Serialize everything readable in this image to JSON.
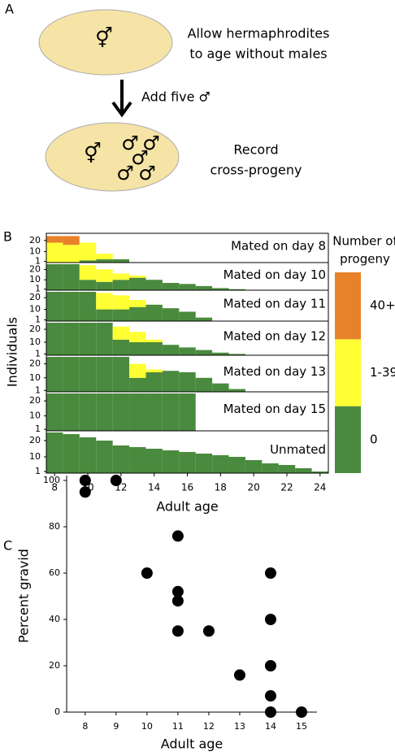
{
  "diagram": {
    "panel_labels": [
      "A",
      "B",
      "C"
    ],
    "step1": {
      "symbol": "⚥",
      "lines": [
        "Allow hermaphrodites",
        "to age without males"
      ]
    },
    "arrow_label": "Add five ♂",
    "step2": {
      "symbol": "⚥",
      "males": [
        "♂",
        "♂",
        "♂",
        "♂",
        "♂"
      ],
      "lines": [
        "Record",
        "cross-progeny"
      ]
    }
  },
  "chart_data": [
    {
      "type": "bar",
      "stacked": true,
      "x_label": "Adult age",
      "y_label": "Individuals",
      "x": [
        8,
        9,
        10,
        11,
        12,
        13,
        14,
        15,
        16,
        17,
        18,
        19,
        20,
        21,
        22,
        23,
        24
      ],
      "xlim": [
        7.5,
        24.5
      ],
      "xticks": [
        8,
        10,
        12,
        14,
        16,
        18,
        20,
        22,
        24
      ],
      "ylim": [
        0,
        25
      ],
      "yticks": [
        1,
        10,
        20
      ],
      "legend_title": [
        "Number of",
        "progeny"
      ],
      "series": [
        {
          "name": "0",
          "color": "#4a8a3e"
        },
        {
          "name": "1-39",
          "color": "#ffff33"
        },
        {
          "name": "40+",
          "color": "#e8822a"
        }
      ],
      "panels": [
        {
          "label": "Mated on day 8",
          "values": [
            [
              0,
              0,
              2,
              3,
              3,
              0,
              0,
              0,
              0,
              0,
              0,
              0,
              0,
              0,
              0,
              0,
              0
            ],
            [
              18,
              16,
              16,
              5,
              0,
              0,
              0,
              0,
              0,
              0,
              0,
              0,
              0,
              0,
              0,
              0,
              0
            ],
            [
              6,
              8,
              0,
              0,
              0,
              0,
              0,
              0,
              0,
              0,
              0,
              0,
              0,
              0,
              0,
              0,
              0
            ]
          ]
        },
        {
          "label": "Mated on day 10",
          "values": [
            [
              25,
              25,
              10,
              8,
              10,
              12,
              10,
              7,
              6,
              4,
              2,
              1,
              0,
              0,
              0,
              0,
              0
            ],
            [
              0,
              0,
              14,
              12,
              6,
              2,
              0,
              0,
              0,
              0,
              0,
              0,
              0,
              0,
              0,
              0,
              0
            ],
            [
              0,
              0,
              0,
              0,
              0,
              0,
              0,
              0,
              0,
              0,
              0,
              0,
              0,
              0,
              0,
              0,
              0
            ]
          ]
        },
        {
          "label": "Mated on day 11",
          "values": [
            [
              25,
              25,
              25,
              10,
              10,
              12,
              14,
              11,
              8,
              3,
              0,
              0,
              0,
              0,
              0,
              0,
              0
            ],
            [
              0,
              0,
              0,
              14,
              12,
              6,
              0,
              0,
              0,
              0,
              0,
              0,
              0,
              0,
              0,
              0,
              0
            ],
            [
              0,
              0,
              0,
              0,
              0,
              0,
              0,
              0,
              0,
              0,
              0,
              0,
              0,
              0,
              0,
              0,
              0
            ]
          ]
        },
        {
          "label": "Mated on day 12",
          "values": [
            [
              25,
              25,
              25,
              25,
              12,
              10,
              10,
              8,
              6,
              4,
              2,
              1,
              0,
              0,
              0,
              0,
              0
            ],
            [
              0,
              0,
              0,
              0,
              10,
              8,
              2,
              0,
              0,
              0,
              0,
              0,
              0,
              0,
              0,
              0,
              0
            ],
            [
              0,
              0,
              0,
              0,
              0,
              0,
              0,
              0,
              0,
              0,
              0,
              0,
              0,
              0,
              0,
              0,
              0
            ]
          ]
        },
        {
          "label": "Mated on day 13",
          "values": [
            [
              25,
              25,
              25,
              25,
              25,
              10,
              14,
              15,
              14,
              10,
              6,
              2,
              0,
              0,
              0,
              0,
              0
            ],
            [
              0,
              0,
              0,
              0,
              0,
              10,
              2,
              0,
              0,
              0,
              0,
              0,
              0,
              0,
              0,
              0,
              0
            ],
            [
              0,
              0,
              0,
              0,
              0,
              0,
              0,
              0,
              0,
              0,
              0,
              0,
              0,
              0,
              0,
              0,
              0
            ]
          ]
        },
        {
          "label": "Mated on day 15",
          "values": [
            [
              25,
              25,
              25,
              25,
              25,
              25,
              25,
              25,
              25,
              0,
              0,
              0,
              0,
              0,
              0,
              0,
              0
            ],
            [
              0,
              0,
              0,
              0,
              0,
              0,
              0,
              0,
              0,
              0,
              0,
              0,
              0,
              0,
              0,
              0,
              0
            ],
            [
              0,
              0,
              0,
              0,
              0,
              0,
              0,
              0,
              0,
              0,
              0,
              0,
              0,
              0,
              0,
              0,
              0
            ]
          ]
        },
        {
          "label": "Unmated",
          "values": [
            [
              25,
              24,
              22,
              20,
              17,
              16,
              15,
              14,
              13,
              12,
              11,
              10,
              8,
              6,
              5,
              3,
              1
            ],
            [
              0,
              0,
              0,
              0,
              0,
              0,
              0,
              0,
              0,
              0,
              0,
              0,
              0,
              0,
              0,
              0,
              0
            ],
            [
              0,
              0,
              0,
              0,
              0,
              0,
              0,
              0,
              0,
              0,
              0,
              0,
              0,
              0,
              0,
              0,
              0
            ]
          ]
        }
      ]
    },
    {
      "type": "scatter",
      "x_label": "Adult age",
      "y_label": "Percent gravid",
      "color": "#000000",
      "x": [
        8,
        8,
        9,
        10,
        11,
        11,
        11,
        11,
        12,
        13,
        14,
        14,
        14,
        14,
        14,
        15
      ],
      "values": [
        100,
        95,
        100,
        60,
        76,
        52,
        48,
        35,
        35,
        16,
        60,
        40,
        20,
        7,
        0,
        0
      ],
      "xlim": [
        7.4,
        15.5
      ],
      "xticks": [
        8,
        9,
        10,
        11,
        12,
        13,
        14,
        15
      ],
      "ylim": [
        0,
        100
      ],
      "yticks": [
        0,
        20,
        40,
        60,
        80,
        100
      ]
    }
  ]
}
